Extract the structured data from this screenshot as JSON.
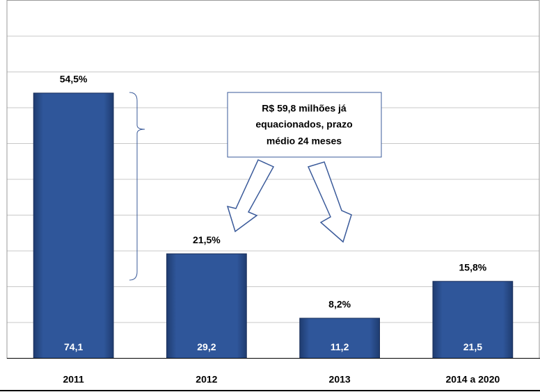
{
  "chart_data": {
    "type": "bar",
    "categories": [
      "2011",
      "2012",
      "2013",
      "2014 a 2020"
    ],
    "values": [
      74.1,
      29.2,
      11.2,
      21.5
    ],
    "value_labels": [
      "74,1",
      "29,2",
      "11,2",
      "21,5"
    ],
    "percent_labels": [
      "54,5%",
      "21,5%",
      "8,2%",
      "15,8%"
    ],
    "color": "#2b4f8e",
    "ylim": [
      0,
      100
    ],
    "yticks": [
      0,
      10,
      20,
      30,
      40,
      50,
      60,
      70,
      80,
      90,
      100
    ],
    "grid": true,
    "callout": [
      "R$ 59,8 milhões já",
      "equacionados,  prazo",
      "médio 24 meses"
    ]
  }
}
